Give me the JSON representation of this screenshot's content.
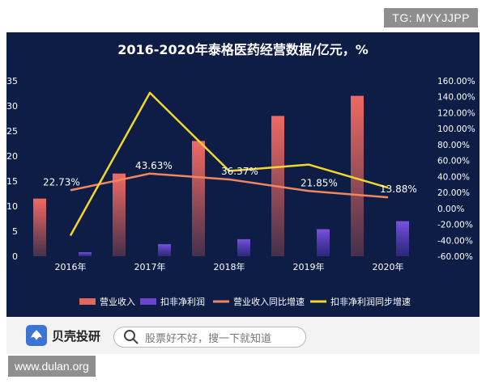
{
  "watermark_top": "TG: MYYJJPP",
  "watermark_bottom": "www.dulan.org",
  "footer": {
    "brand_name": "贝壳投研",
    "search_placeholder": "股票好不好，搜一下就知道",
    "logo_icon": "bear-logo-icon",
    "search_icon": "search-icon"
  },
  "chart_data": {
    "type": "bar",
    "title": "2016-2020年泰格医药经营数据/亿元，%",
    "categories": [
      "2016年",
      "2017年",
      "2018年",
      "2019年",
      "2020年"
    ],
    "y_left": {
      "min": 0,
      "max": 35,
      "ticks": [
        "0",
        "5",
        "10",
        "15",
        "20",
        "25",
        "30",
        "35"
      ]
    },
    "y_right": {
      "min": -60,
      "max": 160,
      "ticks": [
        "-60.00%",
        "-40.00%",
        "-20.00%",
        "0.00%",
        "20.00%",
        "40.00%",
        "60.00%",
        "80.00%",
        "100.00%",
        "120.00%",
        "140.00%",
        "160.00%"
      ]
    },
    "series": [
      {
        "name": "营业收入",
        "kind": "bar",
        "axis": "left",
        "color": "#e2675e",
        "values": [
          11.5,
          16.5,
          23,
          28,
          32
        ]
      },
      {
        "name": "扣非净利润",
        "kind": "bar",
        "axis": "left",
        "color": "#6a45c9",
        "values": [
          0.8,
          2.4,
          3.4,
          5.4,
          7
        ]
      },
      {
        "name": "营业收入同比增速",
        "kind": "line",
        "axis": "right",
        "color": "#f0875e",
        "values": [
          22.73,
          43.63,
          36.37,
          21.85,
          13.88
        ],
        "labels": [
          "22.73%",
          "43.63%",
          "36.37%",
          "21.85%",
          "13.88%"
        ]
      },
      {
        "name": "扣非净利润同步增速",
        "kind": "line",
        "axis": "right",
        "color": "#f2d62c",
        "values": [
          -34,
          145,
          47,
          55,
          26
        ]
      }
    ],
    "grid": false,
    "legend_position": "bottom"
  }
}
